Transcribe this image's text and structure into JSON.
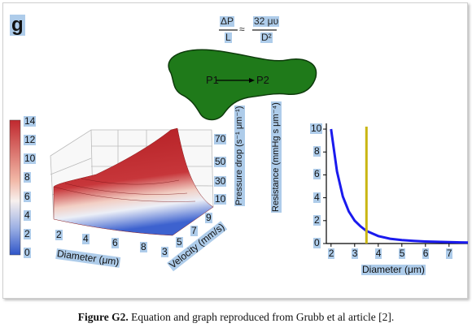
{
  "panel": {
    "letter": "g"
  },
  "equation": {
    "numerator_left": "ΔP",
    "denominator_left": "L",
    "approx": "≈",
    "numerator_right": "32 μυ",
    "denominator_right": "D²"
  },
  "blob": {
    "p1": "P1",
    "p2": "P2",
    "color": "#1f7a1a"
  },
  "colorbar": {
    "ticks": [
      "14",
      "12",
      "10",
      "8",
      "6",
      "4",
      "2",
      "0"
    ],
    "colors": {
      "high": "#c0282e",
      "mid": "#f7f0ee",
      "low": "#2f55c8"
    }
  },
  "surface3d": {
    "x_label": "Diameter (μm)",
    "x_ticks": [
      "2",
      "4",
      "6",
      "8"
    ],
    "y_label": "Velocity (mm/s)",
    "y_ticks": [
      "3",
      "5",
      "7",
      "9"
    ],
    "z_label": "Pressure drop (s⁻¹ μm⁻¹)",
    "z_ticks": [
      "70",
      "50",
      "30",
      "10"
    ]
  },
  "chart_data": {
    "type": "line",
    "xlabel": "Diameter (μm)",
    "ylabel": "Resistance (mmHg s μm⁻⁴)",
    "xlim": [
      1.8,
      7.8
    ],
    "ylim": [
      0,
      10.5
    ],
    "x_ticks": [
      "2",
      "3",
      "4",
      "5",
      "6",
      "7"
    ],
    "y_ticks": [
      "10",
      "8",
      "6",
      "4",
      "2",
      "0"
    ],
    "series": [
      {
        "color": "#1a1aee",
        "x": [
          2.0,
          2.25,
          2.5,
          2.75,
          3.0,
          3.25,
          3.5,
          4.0,
          4.5,
          5.0,
          5.5,
          6.0,
          6.5,
          7.0,
          7.5,
          7.8
        ],
        "y": [
          10.0,
          6.3,
          4.1,
          2.8,
          2.0,
          1.5,
          1.1,
          0.65,
          0.42,
          0.3,
          0.23,
          0.18,
          0.15,
          0.12,
          0.1,
          0.09
        ]
      }
    ],
    "vline": {
      "x": 3.5,
      "color": "#c9b612"
    }
  },
  "caption": {
    "label": "Figure G2.",
    "text": " Equation and graph reproduced from Grubb et al article [2]."
  }
}
